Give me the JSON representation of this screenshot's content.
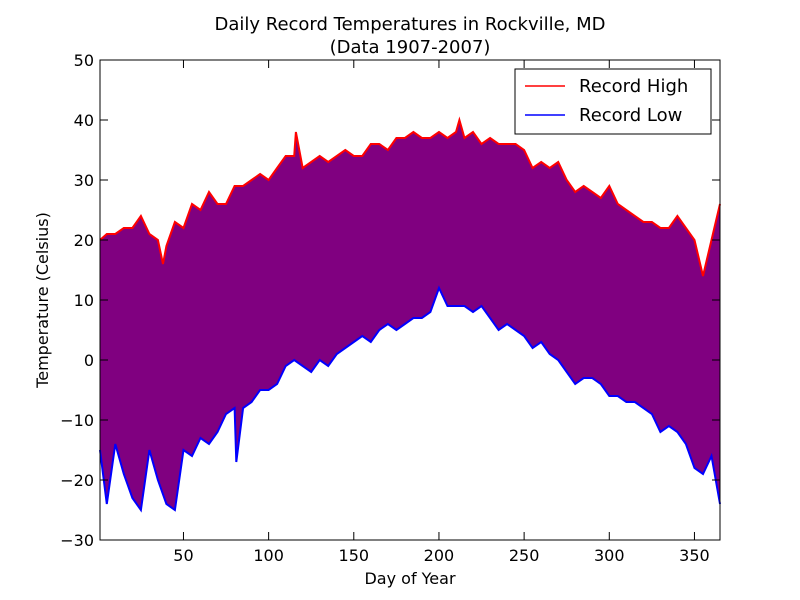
{
  "chart_data": {
    "type": "area",
    "title": "Daily Record Temperatures in Rockville, MD",
    "subtitle": "(Data 1907-2007)",
    "xlabel": "Day of Year",
    "ylabel": "Temperature (Celsius)",
    "xlim": [
      1,
      365
    ],
    "ylim": [
      -30,
      50
    ],
    "x_ticks": [
      50,
      100,
      150,
      200,
      250,
      300,
      350
    ],
    "x_tick_labels": [
      "50",
      "100",
      "150",
      "200",
      "250",
      "300",
      "350"
    ],
    "y_ticks": [
      -30,
      -20,
      -10,
      0,
      10,
      20,
      30,
      40,
      50
    ],
    "y_tick_labels": [
      "−30",
      "−20",
      "−10",
      "0",
      "10",
      "20",
      "30",
      "40",
      "50"
    ],
    "grid": false,
    "legend_position": "top-right",
    "fill_color": "#800080",
    "series": [
      {
        "name": "Record High",
        "color": "#ff0000",
        "x": [
          1,
          5,
          10,
          15,
          20,
          25,
          30,
          35,
          38,
          40,
          45,
          50,
          55,
          60,
          65,
          70,
          75,
          80,
          85,
          90,
          95,
          100,
          105,
          110,
          115,
          116,
          120,
          125,
          130,
          135,
          140,
          145,
          150,
          155,
          160,
          165,
          170,
          175,
          180,
          185,
          190,
          195,
          200,
          205,
          210,
          212,
          215,
          220,
          225,
          230,
          235,
          240,
          245,
          250,
          255,
          260,
          265,
          270,
          275,
          280,
          285,
          290,
          295,
          300,
          305,
          310,
          315,
          320,
          325,
          330,
          335,
          340,
          345,
          350,
          355,
          360,
          365
        ],
        "values": [
          20,
          21,
          21,
          22,
          22,
          24,
          21,
          20,
          16,
          19,
          23,
          22,
          26,
          25,
          28,
          26,
          26,
          29,
          29,
          30,
          31,
          30,
          32,
          34,
          34,
          38,
          32,
          33,
          34,
          33,
          34,
          35,
          34,
          34,
          36,
          36,
          35,
          37,
          37,
          38,
          37,
          37,
          38,
          37,
          38,
          40,
          37,
          38,
          36,
          37,
          36,
          36,
          36,
          35,
          32,
          33,
          32,
          33,
          30,
          28,
          29,
          28,
          27,
          29,
          26,
          25,
          24,
          23,
          23,
          22,
          22,
          24,
          22,
          20,
          14,
          20,
          26
        ]
      },
      {
        "name": "Record Low",
        "color": "#0000ff",
        "x": [
          1,
          5,
          10,
          15,
          20,
          25,
          30,
          35,
          40,
          45,
          50,
          55,
          60,
          65,
          70,
          75,
          80,
          81,
          85,
          90,
          95,
          100,
          105,
          110,
          115,
          120,
          125,
          130,
          135,
          140,
          145,
          150,
          155,
          160,
          165,
          170,
          175,
          180,
          185,
          190,
          195,
          200,
          205,
          210,
          215,
          220,
          225,
          230,
          235,
          240,
          245,
          250,
          255,
          260,
          265,
          270,
          275,
          280,
          285,
          290,
          295,
          300,
          305,
          310,
          315,
          320,
          325,
          330,
          335,
          340,
          345,
          350,
          355,
          360,
          365
        ],
        "values": [
          -15,
          -24,
          -14,
          -19,
          -23,
          -25,
          -15,
          -20,
          -24,
          -25,
          -15,
          -16,
          -13,
          -14,
          -12,
          -9,
          -8,
          -17,
          -8,
          -7,
          -5,
          -5,
          -4,
          -1,
          0,
          -1,
          -2,
          0,
          -1,
          1,
          2,
          3,
          4,
          3,
          5,
          6,
          5,
          6,
          7,
          7,
          8,
          12,
          9,
          9,
          9,
          8,
          9,
          7,
          5,
          6,
          5,
          4,
          2,
          3,
          1,
          0,
          -2,
          -4,
          -3,
          -3,
          -4,
          -6,
          -6,
          -7,
          -7,
          -8,
          -9,
          -12,
          -11,
          -12,
          -14,
          -18,
          -19,
          -16,
          -24
        ]
      }
    ]
  }
}
